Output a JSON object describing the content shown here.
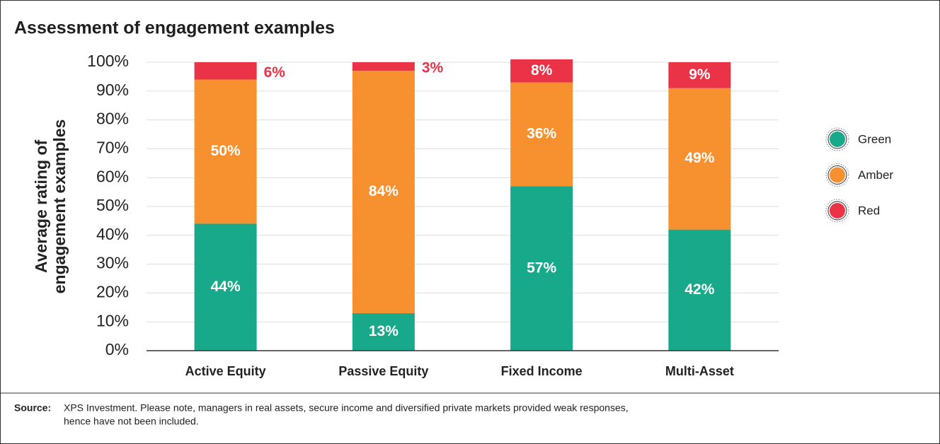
{
  "chart_data": {
    "type": "stacked_bar",
    "title": "Assessment of engagement examples",
    "y_label": [
      "Average rating of",
      "engagement examples"
    ],
    "categories": [
      "Active Equity",
      "Passive Equity",
      "Fixed Income",
      "Multi-Asset"
    ],
    "series": [
      {
        "name": "Green",
        "color": "#17a98a",
        "values": [
          44,
          13,
          57,
          42
        ],
        "value_labels": [
          "44%",
          "13%",
          "57%",
          "42%"
        ]
      },
      {
        "name": "Amber",
        "color": "#f7902f",
        "values": [
          50,
          84,
          36,
          49
        ],
        "value_labels": [
          "50%",
          "84%",
          "36%",
          "49%"
        ]
      },
      {
        "name": "Red",
        "color": "#ea3346",
        "values": [
          6,
          3,
          8,
          9
        ],
        "value_labels": [
          "6%",
          "3%",
          "8%",
          "9%"
        ]
      }
    ],
    "ylim": [
      0,
      100
    ],
    "yticks": [
      {
        "value": 0,
        "label": "0%"
      },
      {
        "value": 10,
        "label": "10%"
      },
      {
        "value": 20,
        "label": "20%"
      },
      {
        "value": 30,
        "label": "30%"
      },
      {
        "value": 40,
        "label": "40%"
      },
      {
        "value": 50,
        "label": "50%"
      },
      {
        "value": 60,
        "label": "60%"
      },
      {
        "value": 70,
        "label": "70%"
      },
      {
        "value": 80,
        "label": "80%"
      },
      {
        "value": 90,
        "label": "90%"
      },
      {
        "value": 100,
        "label": "100%"
      }
    ],
    "grid": true,
    "legend": "right",
    "source": {
      "label": "Source:",
      "text": [
        "XPS Investment. Please note, managers in real assets, secure income and diversified private markets provided weak responses,",
        "hence have not been included."
      ]
    }
  }
}
